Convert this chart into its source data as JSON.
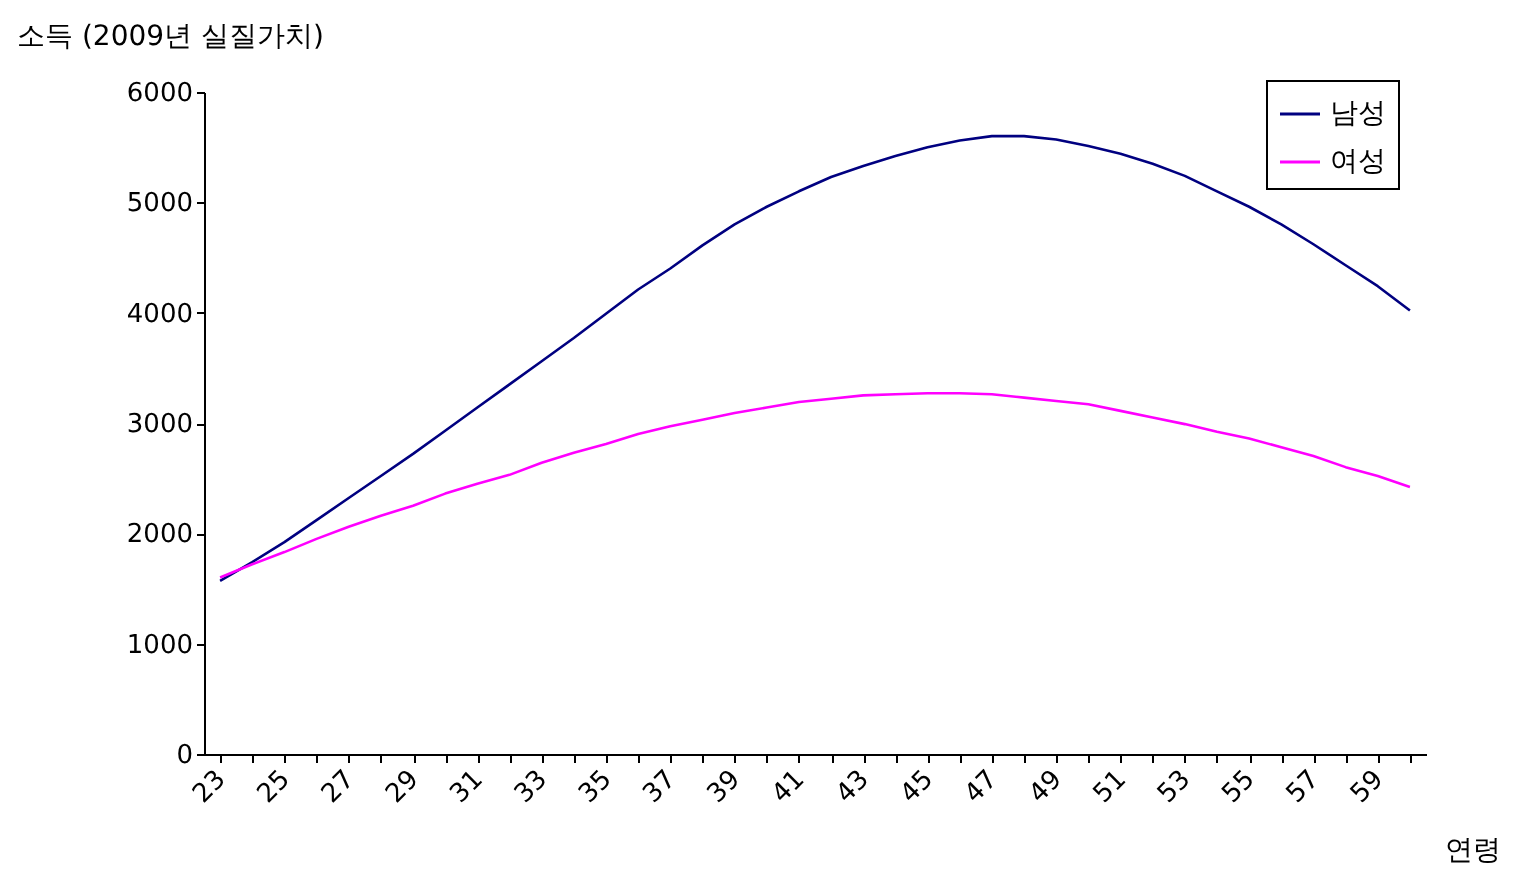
{
  "chart_data": {
    "type": "line",
    "ylabel": "소득 (2009년 실질가치)",
    "xlabel": "연령",
    "categories": [
      "23",
      null,
      "25",
      null,
      "27",
      null,
      "29",
      null,
      "31",
      null,
      "33",
      null,
      "35",
      null,
      "37",
      null,
      "39",
      null,
      "41",
      null,
      "43",
      null,
      "45",
      null,
      "47",
      null,
      "49",
      null,
      "51",
      null,
      "53",
      null,
      "55",
      null,
      "57",
      null,
      "59",
      null
    ],
    "series": [
      {
        "name": "남성",
        "color": "#000080",
        "values": [
          1570,
          1740,
          1920,
          2120,
          2320,
          2520,
          2720,
          2930,
          3140,
          3350,
          3560,
          3770,
          3990,
          4210,
          4400,
          4610,
          4800,
          4960,
          5100,
          5230,
          5330,
          5420,
          5500,
          5560,
          5600,
          5600,
          5570,
          5510,
          5440,
          5350,
          5240,
          5100,
          4960,
          4800,
          4620,
          4430,
          4240,
          4020
        ]
      },
      {
        "name": "여성",
        "color": "#ff00ff",
        "values": [
          1600,
          1720,
          1830,
          1950,
          2060,
          2160,
          2250,
          2360,
          2450,
          2530,
          2640,
          2730,
          2810,
          2900,
          2970,
          3030,
          3090,
          3140,
          3190,
          3220,
          3250,
          3260,
          3270,
          3270,
          3260,
          3230,
          3200,
          3170,
          3110,
          3050,
          2990,
          2920,
          2860,
          2780,
          2700,
          2600,
          2520,
          2420
        ]
      }
    ],
    "ylim": [
      0,
      6000
    ],
    "yticks": [
      0,
      1000,
      2000,
      3000,
      4000,
      5000,
      6000
    ],
    "grid": false,
    "legend": "top right",
    "marker": "none",
    "line_style": "solid"
  }
}
